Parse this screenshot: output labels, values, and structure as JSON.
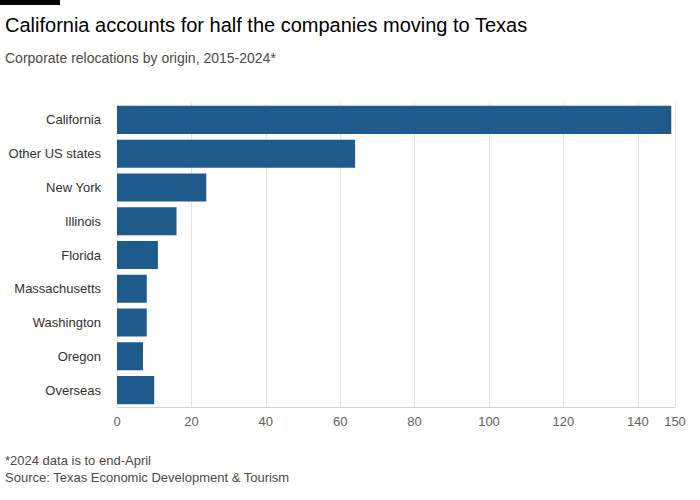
{
  "chart_data": {
    "type": "bar",
    "orientation": "horizontal",
    "title": "California accounts for half the companies moving to Texas",
    "subtitle": "Corporate relocations by origin, 2015-2024*",
    "footnote": "*2024 data is to end-April",
    "source": "Source: Texas Economic Development & Tourism",
    "categories": [
      "California",
      "Other US states",
      "New York",
      "Illinois",
      "Florida",
      "Massachusetts",
      "Washington",
      "Oregon",
      "Overseas"
    ],
    "values": [
      149,
      64,
      24,
      16,
      11,
      8,
      8,
      7,
      10
    ],
    "color": "#1f5a8c",
    "xlim": [
      0,
      150
    ],
    "xticks": [
      0,
      20,
      40,
      60,
      80,
      100,
      120,
      140
    ],
    "grid": true
  }
}
